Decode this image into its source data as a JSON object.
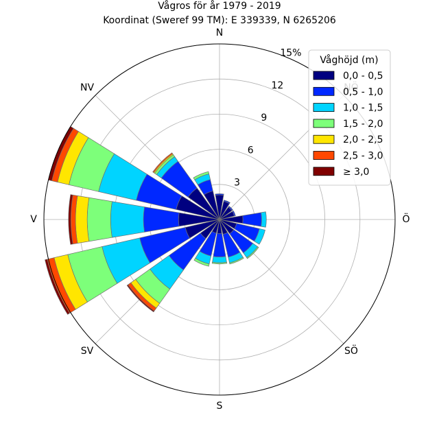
{
  "chart_data": {
    "type": "windrose",
    "title": "Vågros för år 1979 - 2019",
    "subtitle": "Koordinat (Sweref 99 TM): E 339339, N 6265206",
    "direction_labels": [
      "N",
      "Ö",
      "S",
      "V",
      "NÖ",
      "SÖ",
      "SV",
      "NV"
    ],
    "radial_unit": "%",
    "radial_ticks": [
      3,
      6,
      9,
      12,
      15
    ],
    "radial_tick_labels": [
      "3",
      "6",
      "9",
      "12",
      "15%"
    ],
    "rmax": 15,
    "grid": true,
    "legend_position": "top-right",
    "legend_title": "Våghöjd (m)",
    "bins": [
      {
        "label": "0,0 - 0,5",
        "color": "#000080"
      },
      {
        "label": "0,5 - 1,0",
        "color": "#0028ff"
      },
      {
        "label": "1,0 - 1,5",
        "color": "#00d4ff"
      },
      {
        "label": "1,5 - 2,0",
        "color": "#7dff7a"
      },
      {
        "label": "2,0 - 2,5",
        "color": "#ffe600"
      },
      {
        "label": "2,5 - 3,0",
        "color": "#ff4800"
      },
      {
        "label": "≥ 3,0",
        "color": "#800000"
      }
    ],
    "sectors": [
      {
        "direction_deg": 0,
        "values": [
          2.1,
          0.1,
          0.0,
          0.0,
          0.0,
          0.0,
          0.0
        ]
      },
      {
        "direction_deg": 22.5,
        "values": [
          1.6,
          0.1,
          0.0,
          0.0,
          0.0,
          0.0,
          0.0
        ]
      },
      {
        "direction_deg": 45,
        "values": [
          1.3,
          0.1,
          0.0,
          0.0,
          0.0,
          0.0,
          0.0
        ]
      },
      {
        "direction_deg": 67.5,
        "values": [
          1.3,
          0.1,
          0.0,
          0.0,
          0.0,
          0.0,
          0.0
        ]
      },
      {
        "direction_deg": 90,
        "values": [
          2.0,
          1.6,
          0.4,
          0.0,
          0.0,
          0.0,
          0.0
        ]
      },
      {
        "direction_deg": 112.5,
        "values": [
          1.5,
          2.0,
          0.5,
          0.0,
          0.0,
          0.0,
          0.0
        ]
      },
      {
        "direction_deg": 135,
        "values": [
          1.5,
          2.0,
          0.5,
          0.1,
          0.0,
          0.0,
          0.0
        ]
      },
      {
        "direction_deg": 157.5,
        "values": [
          1.3,
          2.0,
          0.5,
          0.1,
          0.0,
          0.0,
          0.0
        ]
      },
      {
        "direction_deg": 180,
        "values": [
          1.2,
          2.0,
          0.5,
          0.1,
          0.0,
          0.0,
          0.0
        ]
      },
      {
        "direction_deg": 202.5,
        "values": [
          1.2,
          2.0,
          0.7,
          0.2,
          0.0,
          0.0,
          0.0
        ]
      },
      {
        "direction_deg": 225,
        "values": [
          2.0,
          3.3,
          2.0,
          1.5,
          0.5,
          0.3,
          0.1
        ]
      },
      {
        "direction_deg": 247.5,
        "values": [
          3.0,
          4.0,
          3.3,
          3.0,
          1.2,
          0.6,
          0.2
        ]
      },
      {
        "direction_deg": 270,
        "values": [
          3.5,
          3.0,
          2.8,
          2.0,
          1.0,
          0.4,
          0.2
        ]
      },
      {
        "direction_deg": 292.5,
        "values": [
          3.8,
          3.5,
          3.3,
          2.6,
          1.0,
          0.5,
          0.3
        ]
      },
      {
        "direction_deg": 315,
        "values": [
          3.3,
          2.8,
          0.5,
          0.2,
          0.1,
          0.1,
          0.0
        ]
      },
      {
        "direction_deg": 337.5,
        "values": [
          2.5,
          1.0,
          0.5,
          0.2,
          0.0,
          0.0,
          0.0
        ]
      }
    ]
  }
}
